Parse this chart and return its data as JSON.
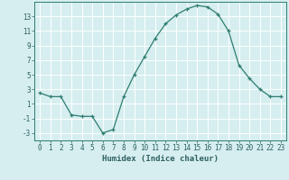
{
  "x": [
    0,
    1,
    2,
    3,
    4,
    5,
    6,
    7,
    8,
    9,
    10,
    11,
    12,
    13,
    14,
    15,
    16,
    17,
    18,
    19,
    20,
    21,
    22,
    23
  ],
  "y": [
    2.5,
    2.0,
    2.0,
    -0.5,
    -0.7,
    -0.7,
    -3.0,
    -2.5,
    2.0,
    5.0,
    7.5,
    10.0,
    12.0,
    13.2,
    14.0,
    14.5,
    14.3,
    13.3,
    11.0,
    6.3,
    4.5,
    3.0,
    2.0,
    2.0
  ],
  "xlabel": "Humidex (Indice chaleur)",
  "xlim": [
    -0.5,
    23.5
  ],
  "ylim": [
    -4,
    15
  ],
  "yticks": [
    -3,
    -1,
    1,
    3,
    5,
    7,
    9,
    11,
    13
  ],
  "xticks": [
    0,
    1,
    2,
    3,
    4,
    5,
    6,
    7,
    8,
    9,
    10,
    11,
    12,
    13,
    14,
    15,
    16,
    17,
    18,
    19,
    20,
    21,
    22,
    23
  ],
  "line_color": "#2e7d6e",
  "bg_color": "#d6eef0",
  "grid_color": "#ffffff",
  "label_color": "#2e6060",
  "tick_color": "#2e6060",
  "label_fontsize": 6.5,
  "tick_fontsize": 5.5
}
